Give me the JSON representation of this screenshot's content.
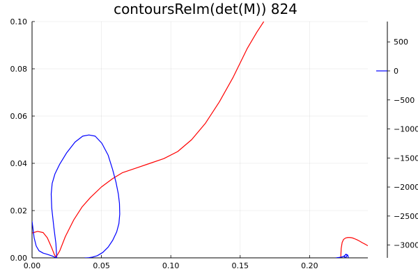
{
  "chart_data": {
    "type": "line",
    "title": "contoursReIm(det(M)) 824",
    "xlabel": "",
    "ylabel": "",
    "xlim": [
      0,
      0.242
    ],
    "ylim": [
      0,
      0.1
    ],
    "x_ticks": [
      "0.00",
      "0.05",
      "0.10",
      "0.15",
      "0.20"
    ],
    "x_tick_values": [
      0,
      0.05,
      0.1,
      0.15,
      0.2
    ],
    "y_ticks": [
      "0.00",
      "0.02",
      "0.04",
      "0.06",
      "0.08",
      "0.10"
    ],
    "y_tick_values": [
      0,
      0.02,
      0.04,
      0.06,
      0.08,
      0.1
    ],
    "grid": true,
    "colorbar": {
      "ticks": [
        "500",
        "0",
        "−500",
        "−1000",
        "−1500",
        "−2000",
        "−2500",
        "−3000"
      ],
      "tick_values": [
        500,
        0,
        -500,
        -1000,
        -1500,
        -2000,
        -2500,
        -3000
      ],
      "range": [
        -3220,
        850
      ]
    },
    "legend": {
      "label": "0",
      "color": "#0000ff",
      "placement": "right"
    },
    "colors": {
      "real": "#ff0000",
      "imag": "#0000ff"
    },
    "series": [
      {
        "color": "#ff0000",
        "x": [
          0.0,
          0.004,
          0.008,
          0.011,
          0.014,
          0.016,
          0.017,
          0.018,
          0.02,
          0.024,
          0.03,
          0.036,
          0.042,
          0.05,
          0.058,
          0.065,
          0.075,
          0.085,
          0.095,
          0.105,
          0.115,
          0.125,
          0.135,
          0.145,
          0.155,
          0.162,
          0.167
        ],
        "y": [
          0.0105,
          0.0112,
          0.0107,
          0.0085,
          0.0045,
          0.0015,
          0.0005,
          0.001,
          0.003,
          0.009,
          0.016,
          0.0215,
          0.0255,
          0.03,
          0.0335,
          0.036,
          0.038,
          0.04,
          0.042,
          0.045,
          0.05,
          0.057,
          0.066,
          0.0765,
          0.0885,
          0.0955,
          0.1
        ]
      },
      {
        "color": "#ff0000",
        "x": [
          0.2225,
          0.2228,
          0.2235,
          0.2245,
          0.226,
          0.2275,
          0.229,
          0.2305,
          0.232,
          0.234,
          0.236,
          0.238,
          0.24,
          0.242
        ],
        "y": [
          0.0005,
          0.004,
          0.0065,
          0.0078,
          0.0084,
          0.0086,
          0.0086,
          0.0085,
          0.0082,
          0.0077,
          0.0071,
          0.0064,
          0.0058,
          0.0051
        ]
      },
      {
        "color": "#0000ff",
        "x": [
          0.0,
          0.0015,
          0.003,
          0.005,
          0.008,
          0.011,
          0.0145,
          0.016,
          0.017,
          0.0178
        ],
        "y": [
          0.0155,
          0.0085,
          0.005,
          0.003,
          0.002,
          0.0015,
          0.0008,
          0.0004,
          0.0002,
          0.0
        ],
        "closed": false
      },
      {
        "color": "#0000ff",
        "x": [
          0.0178,
          0.0172,
          0.0157,
          0.0142,
          0.0138,
          0.0145,
          0.0165,
          0.0198,
          0.025,
          0.031,
          0.0365,
          0.041,
          0.0455,
          0.0503,
          0.0548,
          0.058,
          0.0605,
          0.0622,
          0.063,
          0.0632,
          0.0626,
          0.061,
          0.0582,
          0.0548,
          0.051,
          0.047,
          0.0435,
          0.041,
          0.0395,
          0.038
        ],
        "y": [
          0.0,
          0.006,
          0.013,
          0.021,
          0.027,
          0.0315,
          0.0355,
          0.0395,
          0.0445,
          0.049,
          0.0515,
          0.052,
          0.0515,
          0.0485,
          0.0435,
          0.0375,
          0.032,
          0.027,
          0.023,
          0.0185,
          0.0145,
          0.011,
          0.0075,
          0.0045,
          0.0023,
          0.0009,
          0.0003,
          0.0001,
          0.0,
          0.0
        ],
        "closed": false
      },
      {
        "color": "#0000ff",
        "x": [
          0.219,
          0.2215,
          0.2235,
          0.2248,
          0.2258,
          0.2265,
          0.227,
          0.2265,
          0.2255,
          0.225,
          0.226,
          0.2275,
          0.228
        ],
        "y": [
          0.0,
          0.0002,
          0.0004,
          0.0007,
          0.0012,
          0.0015,
          0.001,
          0.0004,
          0.0002,
          0.0005,
          0.0015,
          0.0012,
          0.0
        ],
        "closed": false
      }
    ]
  }
}
